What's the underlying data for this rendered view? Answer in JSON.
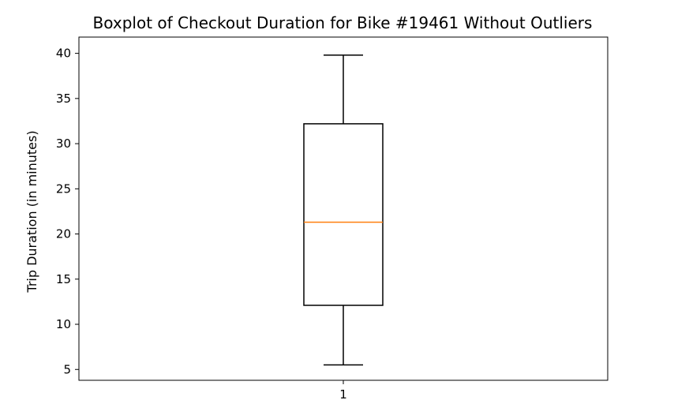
{
  "chart_data": {
    "type": "boxplot",
    "title": "Boxplot of Checkout Duration for Bike #19461 Without Outliers",
    "xlabel": "",
    "ylabel": "Trip Duration (in minutes)",
    "categories": [
      "1"
    ],
    "boxes": [
      {
        "category": "1",
        "whisker_low": 5.5,
        "q1": 12.1,
        "median": 21.3,
        "q3": 32.2,
        "whisker_high": 39.8
      }
    ],
    "yticks": [
      5,
      10,
      15,
      20,
      25,
      30,
      35,
      40
    ],
    "ylim": [
      3.8,
      41.8
    ],
    "grid": false,
    "colors": {
      "box": "#000000",
      "median": "#ff7f0e",
      "background": "#ffffff"
    }
  }
}
